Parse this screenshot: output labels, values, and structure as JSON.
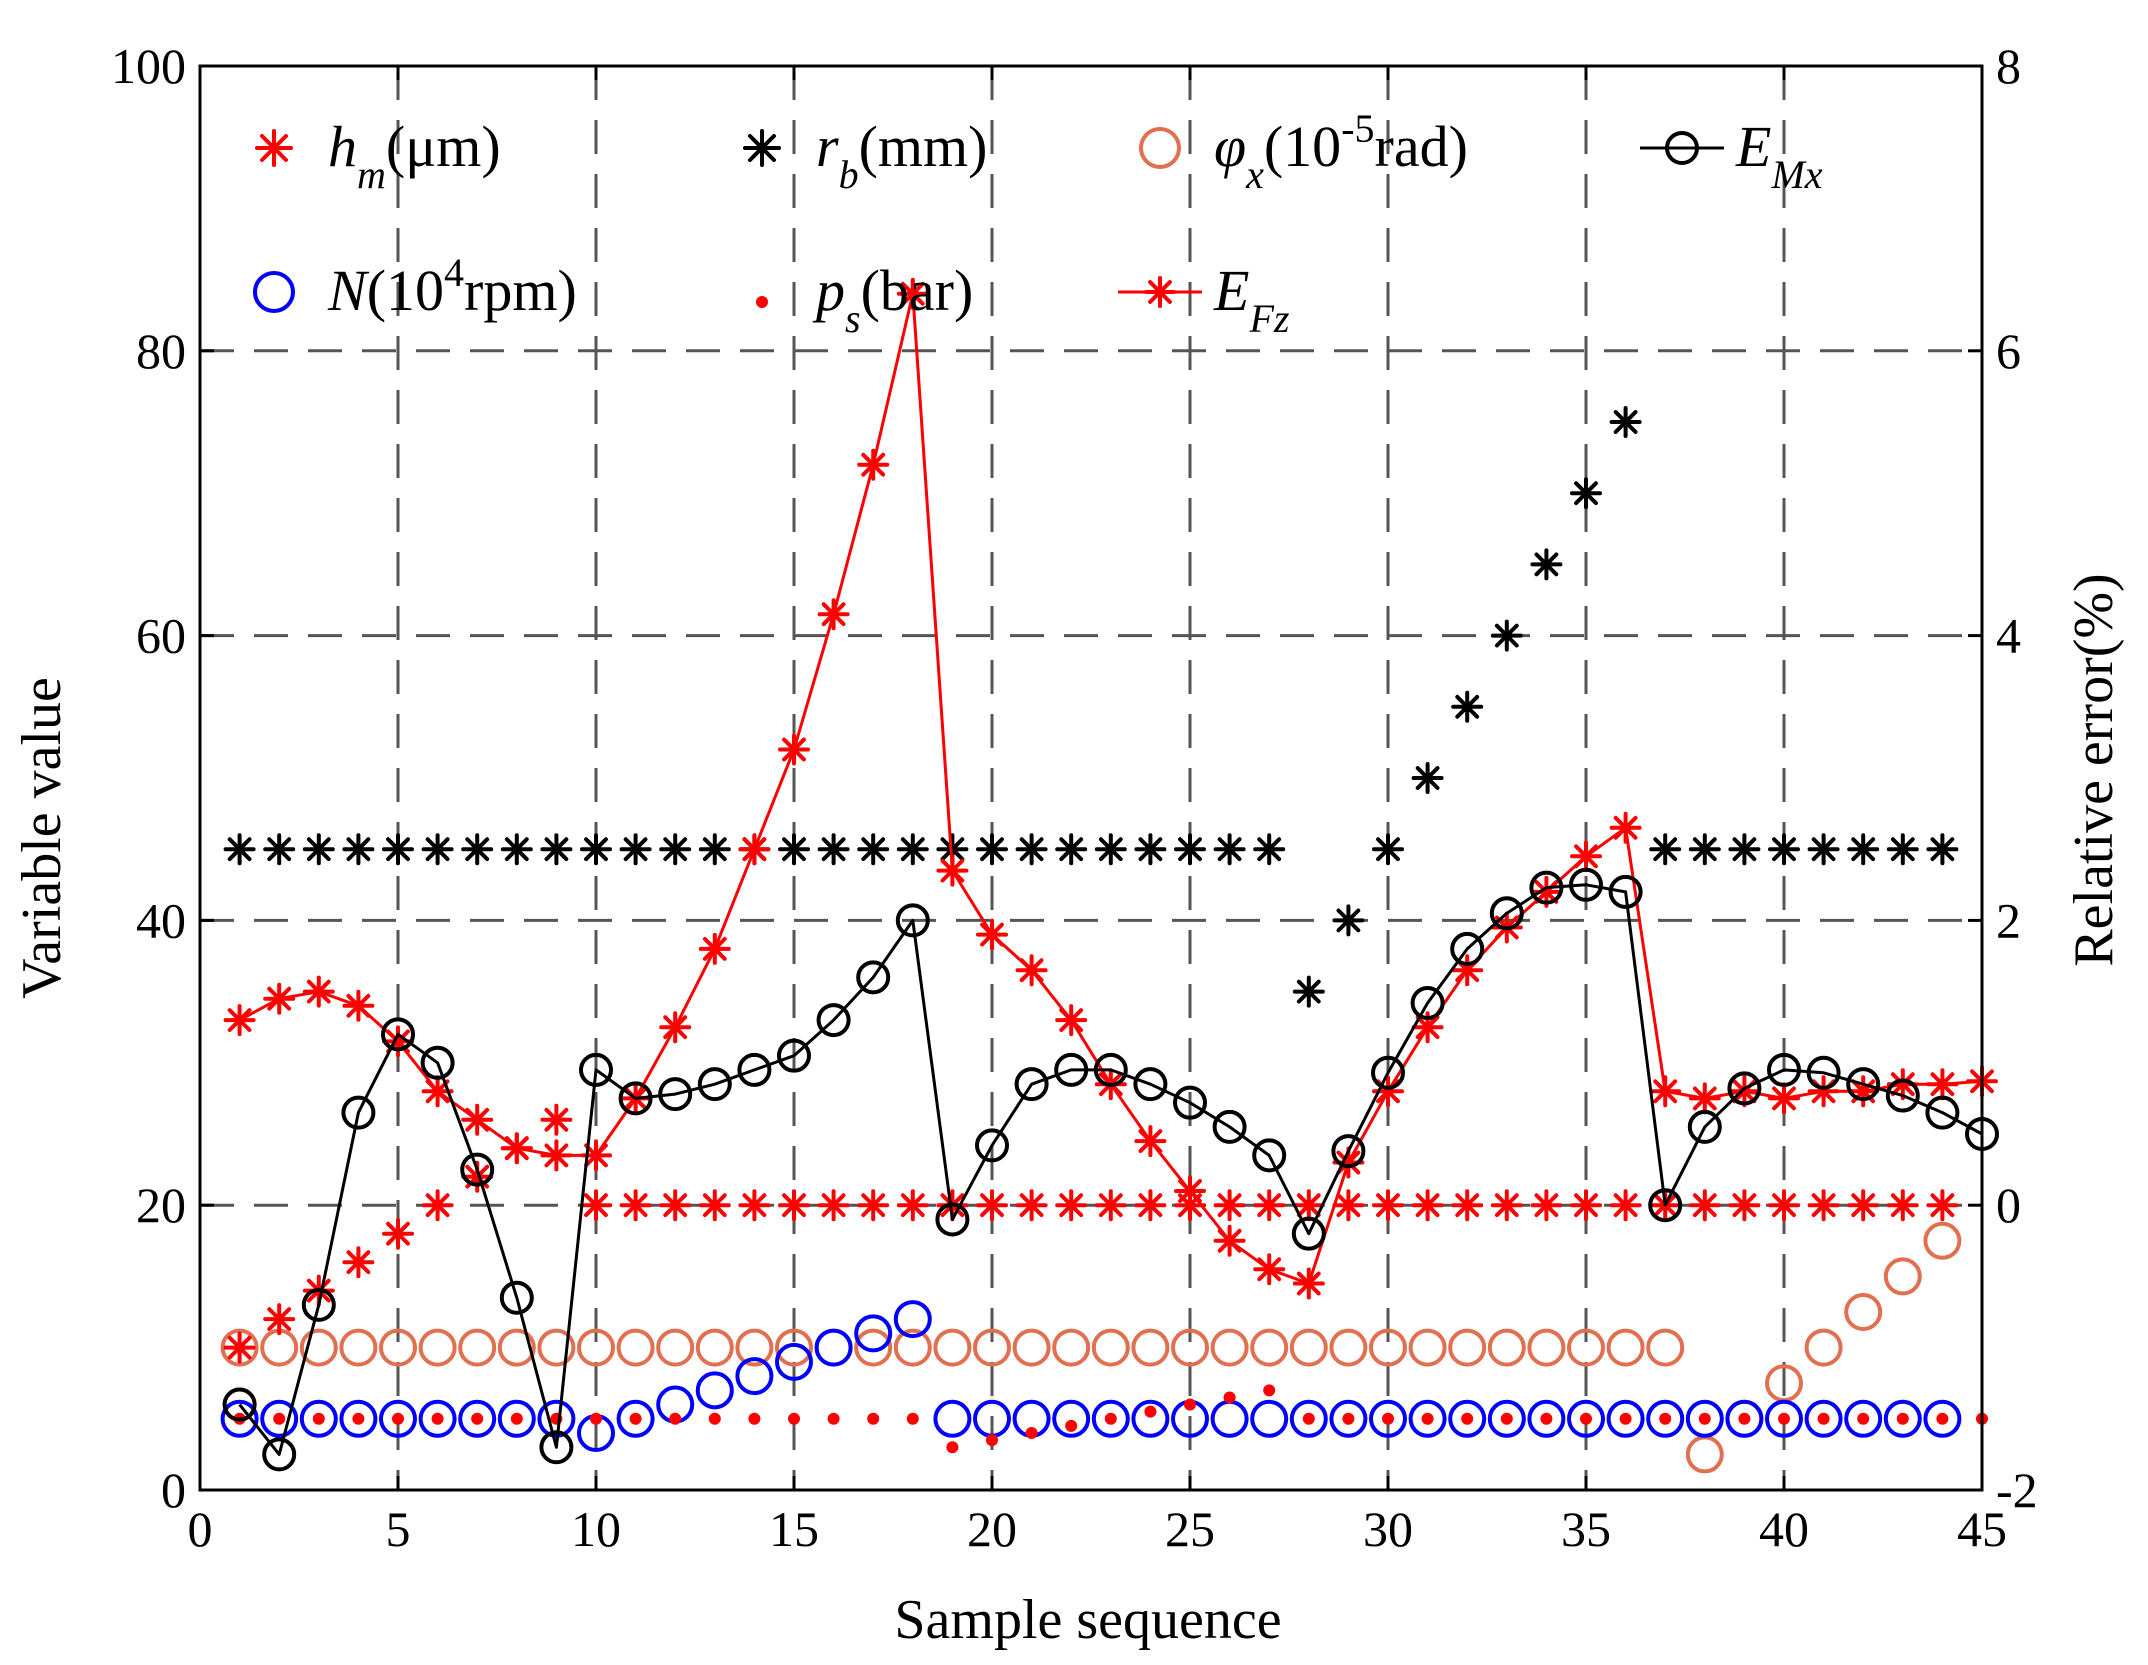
{
  "chart_data": {
    "type": "scatter",
    "xlabel": "Sample sequence",
    "ylabel": "Variable value",
    "y2label": "Relative error(%)",
    "xlim": [
      0,
      45
    ],
    "ylim": [
      0,
      100
    ],
    "y2lim": [
      -2,
      8
    ],
    "xticks": [
      "0",
      "5",
      "10",
      "15",
      "20",
      "25",
      "30",
      "35",
      "40",
      "45"
    ],
    "yticks": [
      "0",
      "20",
      "40",
      "60",
      "80",
      "100"
    ],
    "y2ticks": [
      "-2",
      "0",
      "2",
      "4",
      "6",
      "8"
    ],
    "grid": "dashed",
    "legend_position": "top",
    "colors": {
      "red": "#ff0000",
      "black": "#000000",
      "orange": "#e07050",
      "blue": "#0000ff"
    },
    "legend": [
      {
        "main": "h",
        "sub": "m",
        "unit": "(μm)"
      },
      {
        "main": "r",
        "sub": "b",
        "unit": "(mm)"
      },
      {
        "main": "φ",
        "sub": "x",
        "unit_pre": "(10",
        "unit_sup": "-5",
        "unit_post": "rad)"
      },
      {
        "main": "E",
        "sub": "Mx"
      },
      {
        "main": "N",
        "unit_pre": "(10",
        "unit_sup": "4",
        "unit_post": "rpm)"
      },
      {
        "main": "p",
        "sub": "s",
        "unit": "(bar)"
      },
      {
        "main": "E",
        "sub": "Fz"
      }
    ],
    "series": [
      {
        "name": "h_m(μm)",
        "axis": "left",
        "marker": "asterisk",
        "color": "#ff0000",
        "x": [
          1,
          2,
          3,
          4,
          5,
          6,
          7,
          8,
          9,
          10,
          11,
          12,
          13,
          14,
          15,
          16,
          17,
          18,
          19,
          20,
          21,
          22,
          23,
          24,
          25,
          26,
          27,
          28,
          29,
          30,
          31,
          32,
          33,
          34,
          35,
          36,
          37,
          38,
          39,
          40,
          41,
          42,
          43,
          44
        ],
        "values": [
          10,
          12,
          14,
          16,
          18,
          20,
          22,
          24,
          26,
          20,
          20,
          20,
          20,
          20,
          20,
          20,
          20,
          20,
          20,
          20,
          20,
          20,
          20,
          20,
          20,
          20,
          20,
          20,
          20,
          20,
          20,
          20,
          20,
          20,
          20,
          20,
          20,
          20,
          20,
          20,
          20,
          20,
          20,
          20
        ]
      },
      {
        "name": "r_b(mm)",
        "axis": "left",
        "marker": "asterisk",
        "color": "#000000",
        "x": [
          1,
          2,
          3,
          4,
          5,
          6,
          7,
          8,
          9,
          10,
          11,
          12,
          13,
          14,
          15,
          16,
          17,
          18,
          19,
          20,
          21,
          22,
          23,
          24,
          25,
          26,
          27,
          28,
          29,
          30,
          31,
          32,
          33,
          34,
          35,
          36,
          37,
          38,
          39,
          40,
          41,
          42,
          43,
          44
        ],
        "values": [
          45,
          45,
          45,
          45,
          45,
          45,
          45,
          45,
          45,
          45,
          45,
          45,
          45,
          45,
          45,
          45,
          45,
          45,
          45,
          45,
          45,
          45,
          45,
          45,
          45,
          45,
          45,
          35,
          40,
          45,
          50,
          55,
          60,
          65,
          70,
          75,
          45,
          45,
          45,
          45,
          45,
          45,
          45,
          45
        ]
      },
      {
        "name": "φ_x(10^-5 rad)",
        "axis": "left",
        "marker": "circle",
        "color": "#e07050",
        "x": [
          1,
          2,
          3,
          4,
          5,
          6,
          7,
          8,
          9,
          10,
          11,
          12,
          13,
          14,
          15,
          16,
          17,
          18,
          19,
          20,
          21,
          22,
          23,
          24,
          25,
          26,
          27,
          28,
          29,
          30,
          31,
          32,
          33,
          34,
          35,
          36,
          37,
          38,
          39,
          40,
          41,
          42,
          43,
          44
        ],
        "values": [
          10,
          10,
          10,
          10,
          10,
          10,
          10,
          10,
          10,
          10,
          10,
          10,
          10,
          10,
          10,
          10,
          10,
          10,
          10,
          10,
          10,
          10,
          10,
          10,
          10,
          10,
          10,
          10,
          10,
          10,
          10,
          10,
          10,
          10,
          10,
          10,
          10,
          2.5,
          5,
          7.5,
          10,
          12.5,
          15,
          17.5
        ]
      },
      {
        "name": "N(10^4 rpm)",
        "axis": "left",
        "marker": "circle",
        "color": "#0000ff",
        "x": [
          1,
          2,
          3,
          4,
          5,
          6,
          7,
          8,
          9,
          10,
          11,
          12,
          13,
          14,
          15,
          16,
          17,
          18,
          19,
          20,
          21,
          22,
          23,
          24,
          25,
          26,
          27,
          28,
          29,
          30,
          31,
          32,
          33,
          34,
          35,
          36,
          37,
          38,
          39,
          40,
          41,
          42,
          43,
          44
        ],
        "values": [
          5,
          5,
          5,
          5,
          5,
          5,
          5,
          5,
          5,
          4,
          5,
          6,
          7,
          8,
          9,
          10,
          11,
          12,
          5,
          5,
          5,
          5,
          5,
          5,
          5,
          5,
          5,
          5,
          5,
          5,
          5,
          5,
          5,
          5,
          5,
          5,
          5,
          5,
          5,
          5,
          5,
          5,
          5,
          5
        ]
      },
      {
        "name": "p_s(bar)",
        "axis": "left",
        "marker": "dot",
        "color": "#ff0000",
        "x": [
          1,
          2,
          3,
          4,
          5,
          6,
          7,
          8,
          9,
          10,
          11,
          12,
          13,
          14,
          15,
          16,
          17,
          18,
          19,
          20,
          21,
          22,
          23,
          24,
          25,
          26,
          27,
          28,
          29,
          30,
          31,
          32,
          33,
          34,
          35,
          36,
          37,
          38,
          39,
          40,
          41,
          42,
          43,
          44,
          45
        ],
        "values": [
          5,
          5,
          5,
          5,
          5,
          5,
          5,
          5,
          5,
          5,
          5,
          5,
          5,
          5,
          5,
          5,
          5,
          5,
          3,
          3.5,
          4,
          4.5,
          5,
          5.5,
          6,
          6.5,
          7,
          5,
          5,
          5,
          5,
          5,
          5,
          5,
          5,
          5,
          5,
          5,
          5,
          5,
          5,
          5,
          5,
          5,
          5
        ]
      },
      {
        "name": "E_Mx",
        "axis": "right",
        "marker": "circle-line",
        "color": "#000000",
        "x": [
          1,
          2,
          3,
          4,
          5,
          6,
          7,
          8,
          9,
          10,
          11,
          12,
          13,
          14,
          15,
          16,
          17,
          18,
          19,
          20,
          21,
          22,
          23,
          24,
          25,
          26,
          27,
          28,
          29,
          30,
          31,
          32,
          33,
          34,
          35,
          36,
          37,
          38,
          39,
          40,
          41,
          42,
          43,
          44,
          45
        ],
        "values": [
          -1.4,
          -1.75,
          -0.7,
          0.65,
          1.2,
          1,
          0.25,
          -0.65,
          -1.7,
          0.95,
          0.75,
          0.78,
          0.85,
          0.95,
          1.05,
          1.3,
          1.6,
          2,
          -0.1,
          0.42,
          0.85,
          0.95,
          0.95,
          0.85,
          0.72,
          0.55,
          0.35,
          -0.2,
          0.38,
          0.93,
          1.42,
          1.8,
          2.05,
          2.23,
          2.25,
          2.2,
          0,
          0.55,
          0.82,
          0.95,
          0.93,
          0.85,
          0.77,
          0.65,
          0.5
        ]
      },
      {
        "name": "E_Fz",
        "axis": "right",
        "marker": "asterisk-line",
        "color": "#ff0000",
        "x": [
          1,
          2,
          3,
          4,
          5,
          6,
          7,
          8,
          9,
          10,
          11,
          12,
          13,
          14,
          15,
          16,
          17,
          18,
          19,
          20,
          21,
          22,
          23,
          24,
          25,
          26,
          27,
          28,
          29,
          30,
          31,
          32,
          33,
          34,
          35,
          36,
          37,
          38,
          39,
          40,
          41,
          42,
          43,
          44,
          45
        ],
        "values": [
          1.3,
          1.45,
          1.5,
          1.4,
          1.15,
          0.8,
          0.6,
          0.4,
          0.35,
          0.35,
          0.75,
          1.25,
          1.8,
          2.5,
          3.2,
          4.15,
          5.2,
          6.4,
          2.35,
          1.9,
          1.65,
          1.3,
          0.85,
          0.45,
          0.1,
          -0.25,
          -0.45,
          -0.55,
          0.3,
          0.8,
          1.25,
          1.65,
          1.95,
          2.2,
          2.45,
          2.65,
          0.8,
          0.75,
          0.8,
          0.75,
          0.8,
          0.8,
          0.85,
          0.85,
          0.87
        ]
      }
    ]
  }
}
